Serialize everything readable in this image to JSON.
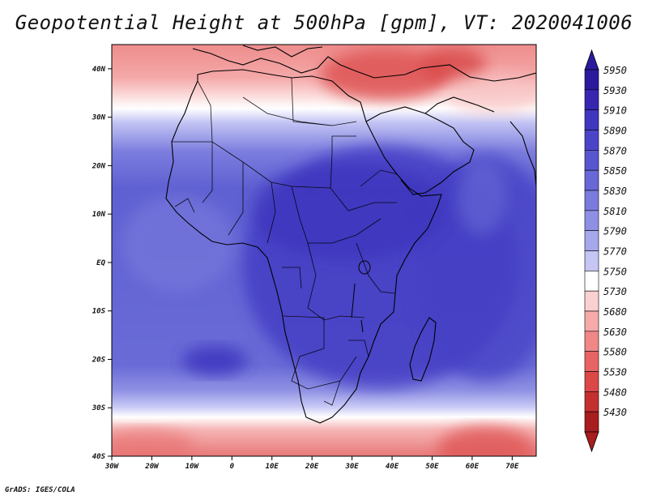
{
  "title": "Geopotential Height at 500hPa [gpm], VT: 2020041006",
  "credit": "GrADS: IGES/COLA",
  "map": {
    "region": "Africa",
    "lon_range": [
      -30,
      76
    ],
    "lat_range": [
      -40,
      45
    ],
    "x_ticks": [
      "30W",
      "20W",
      "10W",
      "0",
      "10E",
      "20E",
      "30E",
      "40E",
      "50E",
      "60E",
      "70E"
    ],
    "y_ticks": [
      "40N",
      "30N",
      "20N",
      "10N",
      "EQ",
      "10S",
      "20S",
      "30S",
      "40S"
    ]
  },
  "colorbar": {
    "levels": [
      "5950",
      "5930",
      "5910",
      "5890",
      "5870",
      "5850",
      "5830",
      "5810",
      "5790",
      "5770",
      "5750",
      "5730",
      "5680",
      "5630",
      "5580",
      "5530",
      "5480",
      "5430"
    ],
    "colors": [
      "#2a1a9e",
      "#3727b0",
      "#3f37c0",
      "#4a45c8",
      "#5856cf",
      "#6868d6",
      "#7a7bdd",
      "#8e90e4",
      "#a6a8ec",
      "#c5c6f4",
      "#ffffff",
      "#fbd0d0",
      "#f6aaaa",
      "#f08888",
      "#e86464",
      "#dc4848",
      "#c43030",
      "#a81d1d"
    ]
  }
}
